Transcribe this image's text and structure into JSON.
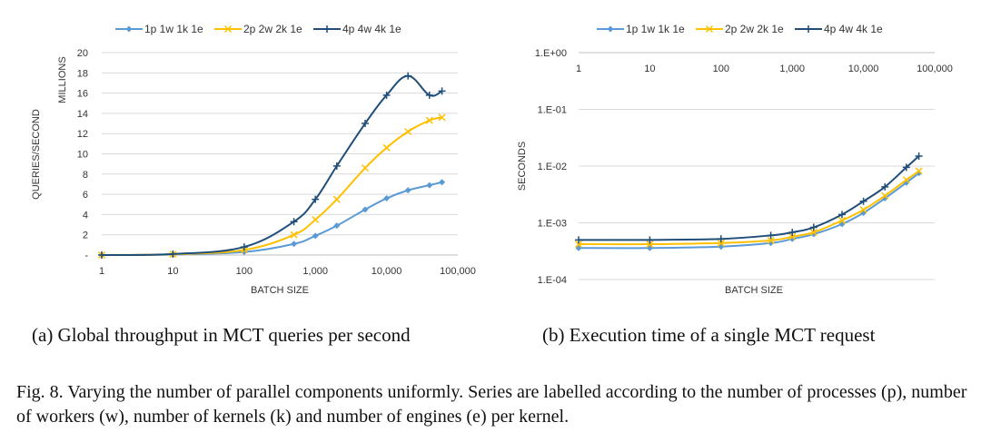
{
  "chart_data": [
    {
      "type": "line",
      "xscale": "log",
      "xlabel": "BATCH SIZE",
      "ylabel": "QUERIES/SECOND",
      "ylabel2": "MILLIONS",
      "xticks": [
        "1",
        "10",
        "100",
        "1,000",
        "10,000",
        "100,000"
      ],
      "yticks": [
        "-",
        "2",
        "4",
        "6",
        "8",
        "10",
        "12",
        "14",
        "16",
        "18",
        "20"
      ],
      "ylim": [
        0,
        20
      ],
      "xlim": [
        1,
        100000
      ],
      "legend_position": "top",
      "grid": "horizontal",
      "x": [
        1,
        10,
        100,
        500,
        1000,
        2000,
        5000,
        10000,
        20000,
        40000,
        60000
      ],
      "series": [
        {
          "name": "1p 1w 1k 1e",
          "color": "#5b9bd5",
          "marker": "diamond",
          "values": [
            0.0,
            0.05,
            0.3,
            1.1,
            1.9,
            2.9,
            4.5,
            5.6,
            6.4,
            6.9,
            7.2
          ]
        },
        {
          "name": "2p 2w 2k 1e",
          "color": "#ffc000",
          "marker": "x",
          "values": [
            0.0,
            0.08,
            0.5,
            2.0,
            3.5,
            5.5,
            8.6,
            10.6,
            12.2,
            13.3,
            13.6
          ]
        },
        {
          "name": "4p 4w 4k 1e",
          "color": "#1f4e79",
          "marker": "plus",
          "values": [
            0.0,
            0.1,
            0.8,
            3.3,
            5.5,
            8.8,
            13.0,
            15.8,
            17.7,
            15.8,
            16.2
          ]
        }
      ]
    },
    {
      "type": "line",
      "xscale": "log",
      "yscale": "log",
      "xlabel": "BATCH SIZE",
      "ylabel": "SECONDS",
      "xticks": [
        "1",
        "10",
        "100",
        "1,000",
        "10,000",
        "100,000"
      ],
      "yticks": [
        "1.E+00",
        "1.E-01",
        "1.E-02",
        "1.E-03",
        "1.E-04"
      ],
      "ylim": [
        0.0001,
        1
      ],
      "xlim": [
        1,
        100000
      ],
      "legend_position": "top",
      "grid": "horizontal",
      "x": [
        1,
        10,
        100,
        500,
        1000,
        2000,
        5000,
        10000,
        20000,
        40000,
        60000
      ],
      "series": [
        {
          "name": "1p 1w 1k 1e",
          "color": "#5b9bd5",
          "marker": "diamond",
          "values": [
            0.00036,
            0.00036,
            0.00038,
            0.00044,
            0.00052,
            0.00063,
            0.00095,
            0.0015,
            0.0027,
            0.0051,
            0.0075
          ]
        },
        {
          "name": "2p 2w 2k 1e",
          "color": "#ffc000",
          "marker": "x",
          "values": [
            0.00042,
            0.00042,
            0.00044,
            0.00049,
            0.00057,
            0.00068,
            0.0011,
            0.0017,
            0.003,
            0.0057,
            0.0082
          ]
        },
        {
          "name": "4p 4w 4k 1e",
          "color": "#1f4e79",
          "marker": "plus",
          "values": [
            0.0005,
            0.0005,
            0.00052,
            0.0006,
            0.00068,
            0.00083,
            0.0014,
            0.0024,
            0.0043,
            0.0095,
            0.015
          ]
        }
      ]
    }
  ],
  "captions": {
    "a": "(a) Global throughput in MCT queries per second",
    "b": "(b) Execution time of a single MCT request",
    "figure": "Fig. 8.  Varying the number of parallel components uniformly. Series are labelled according to the number of processes (p), number of workers (w), number of kernels (k) and number of engines (e) per kernel."
  }
}
